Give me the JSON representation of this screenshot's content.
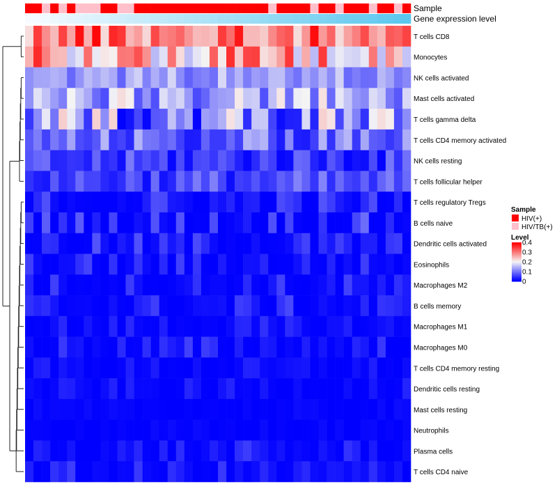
{
  "chart_data": {
    "type": "heatmap",
    "title": "",
    "xlabel": "",
    "ylabel": "",
    "row_labels": [
      "T cells CD8",
      "Monocytes",
      "NK cells activated",
      "Mast cells activated",
      "T cells gamma delta",
      "T cells CD4 memory activated",
      "NK cells resting",
      "T cells follicular helper",
      "T cells regulatory  Tregs",
      "B cells naive",
      "Dendritic cells activated",
      "Eosinophils",
      "Macrophages M2",
      "B cells memory",
      "Macrophages M1",
      "Macrophages M0",
      "T cells CD4 memory resting",
      "Dendritic cells resting",
      "Mast cells resting",
      "Neutrophils",
      "Plasma cells",
      "T cells CD4 naive"
    ],
    "n_columns": 46,
    "annotations": {
      "sample": {
        "label": "Sample",
        "values": "1101010001100111111111111111101111011011101101",
        "codes": {
          "1": "HIV(+)",
          "0": "HIV/TB(+)"
        }
      },
      "gene_expression": {
        "label": "Gene expression level",
        "low_color": "#f7fbff",
        "high_color": "#5bc7ee"
      }
    },
    "color_scale": {
      "legend_title": "Level",
      "min": 0,
      "max": 0.4,
      "ticks": [
        "0",
        "0.1",
        "0.2",
        "0.3",
        "0.4"
      ],
      "low_color": "#0000ff",
      "mid_color": "#f5f5f5",
      "high_color": "#ff0000"
    },
    "sample_legend": {
      "title": "Sample",
      "entries": [
        {
          "label": "HIV(+)",
          "color": "#ff0000"
        },
        {
          "label": "HIV/TB(+)",
          "color": "#ffc0cb"
        }
      ]
    },
    "dendrogram": {
      "clusters": [
        [
          "T cells CD8",
          "Monocytes"
        ],
        [
          "NK cells activated",
          "Mast cells activated",
          "T cells gamma delta",
          "T cells CD4 memory activated",
          "NK cells resting",
          "T cells follicular helper"
        ],
        [
          "T cells regulatory  Tregs",
          "B cells naive",
          "Dendritic cells activated",
          "Eosinophils",
          "Macrophages M2",
          "B cells memory",
          "Macrophages M1",
          "Macrophages M0",
          "T cells CD4 memory resting",
          "Dendritic cells resting",
          "Mast cells resting",
          "Neutrophils",
          "Plasma cells",
          "T cells CD4 naive"
        ]
      ]
    },
    "row_value_profiles": [
      [
        0.22,
        0.4
      ],
      [
        0.15,
        0.38
      ],
      [
        0.08,
        0.18
      ],
      [
        0.06,
        0.22
      ],
      [
        0.0,
        0.24
      ],
      [
        0.02,
        0.15
      ],
      [
        0.0,
        0.1
      ],
      [
        0.01,
        0.11
      ],
      [
        0.0,
        0.08
      ],
      [
        0.0,
        0.09
      ],
      [
        0.0,
        0.07
      ],
      [
        0.0,
        0.06
      ],
      [
        0.0,
        0.06
      ],
      [
        0.0,
        0.06
      ],
      [
        0.0,
        0.04
      ],
      [
        0.0,
        0.06
      ],
      [
        0.0,
        0.03
      ],
      [
        0.0,
        0.03
      ],
      [
        0.0,
        0.01
      ],
      [
        0.0,
        0.01
      ],
      [
        0.0,
        0.05
      ],
      [
        0.0,
        0.05
      ]
    ]
  }
}
